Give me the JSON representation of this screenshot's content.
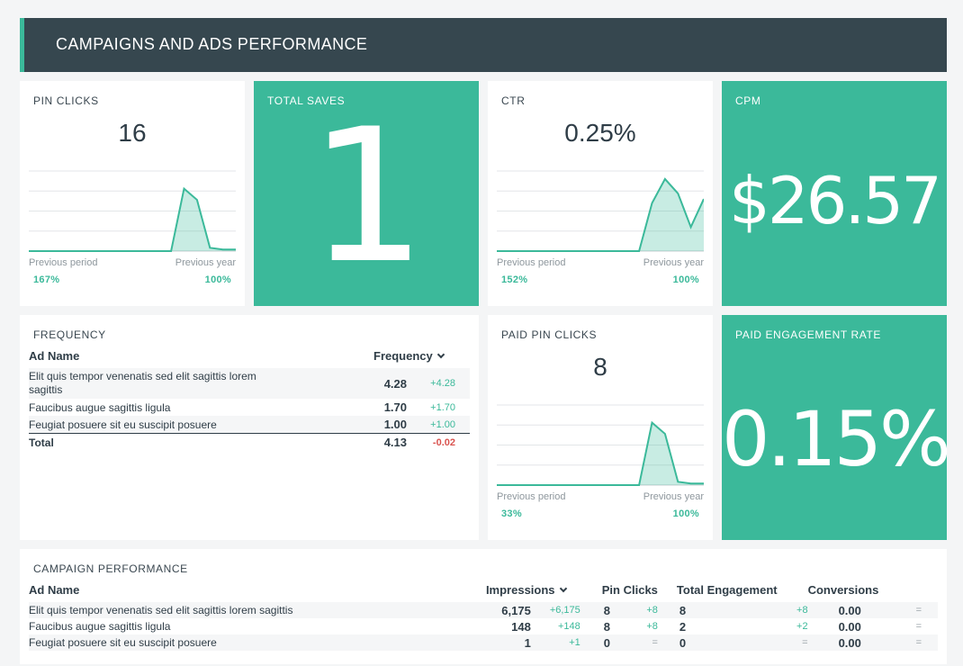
{
  "header": {
    "title": "CAMPAIGNS AND ADS PERFORMANCE"
  },
  "pin_clicks": {
    "title": "PIN CLICKS",
    "value": "16",
    "prev_period_label": "Previous period",
    "prev_period_value": "167%",
    "prev_year_label": "Previous year",
    "prev_year_value": "100%"
  },
  "total_saves": {
    "title": "TOTAL SAVES",
    "value": "1"
  },
  "ctr": {
    "title": "CTR",
    "value": "0.25%",
    "prev_period_label": "Previous period",
    "prev_period_value": "152%",
    "prev_year_label": "Previous year",
    "prev_year_value": "100%"
  },
  "cpm": {
    "title": "CPM",
    "value": "$26.57"
  },
  "frequency": {
    "title": "FREQUENCY",
    "col_name": "Ad Name",
    "col_freq": "Frequency",
    "rows": [
      {
        "name": "Elit quis tempor venenatis sed elit sagittis lorem sagittis",
        "value": "4.28",
        "delta": "+4.28"
      },
      {
        "name": "Faucibus augue sagittis ligula",
        "value": "1.70",
        "delta": "+1.70"
      },
      {
        "name": "Feugiat posuere sit eu suscipit posuere",
        "value": "1.00",
        "delta": "+1.00"
      }
    ],
    "total": {
      "name": "Total",
      "value": "4.13",
      "delta": "-0.02"
    }
  },
  "paid_pin_clicks": {
    "title": "PAID PIN CLICKS",
    "value": "8",
    "prev_period_label": "Previous period",
    "prev_period_value": "33%",
    "prev_year_label": "Previous year",
    "prev_year_value": "100%"
  },
  "paid_engagement": {
    "title": "PAID ENGAGEMENT RATE",
    "value": "0.15%"
  },
  "campaign": {
    "title": "CAMPAIGN PERFORMANCE",
    "columns": {
      "name": "Ad Name",
      "impressions": "Impressions",
      "pin_clicks": "Pin Clicks",
      "engagement": "Total Engagement",
      "conversions": "Conversions"
    },
    "rows": [
      {
        "name": "Elit quis tempor venenatis sed elit sagittis lorem sagittis",
        "imp": "6,175",
        "imp_d": "+6,175",
        "pc": "8",
        "pc_d": "+8",
        "te": "8",
        "te_d": "+8",
        "conv": "0.00",
        "conv_d": "="
      },
      {
        "name": "Faucibus augue sagittis ligula",
        "imp": "148",
        "imp_d": "+148",
        "pc": "8",
        "pc_d": "+8",
        "te": "2",
        "te_d": "+2",
        "conv": "0.00",
        "conv_d": "="
      },
      {
        "name": "Feugiat posuere sit eu suscipit posuere",
        "imp": "1",
        "imp_d": "+1",
        "pc": "0",
        "pc_d": "=",
        "te": "0",
        "te_d": "=",
        "conv": "0.00",
        "conv_d": "="
      }
    ]
  },
  "colors": {
    "accent": "#3bb99a",
    "header_bg": "#36474f",
    "negative": "#d9534f"
  },
  "sparklines": {
    "pin_clicks": [
      0,
      0,
      0,
      0,
      0,
      0,
      0,
      0,
      0,
      0,
      0,
      0,
      0.78,
      0.64,
      0.04,
      0.02,
      0.02
    ],
    "ctr": [
      0,
      0,
      0,
      0,
      0,
      0,
      0,
      0,
      0,
      0,
      0,
      0,
      0.6,
      0.9,
      0.72,
      0.3,
      0.65
    ],
    "paid_pin_clicks": [
      0,
      0,
      0,
      0,
      0,
      0,
      0,
      0,
      0,
      0,
      0,
      0,
      0.78,
      0.64,
      0.04,
      0.02,
      0.02
    ]
  }
}
